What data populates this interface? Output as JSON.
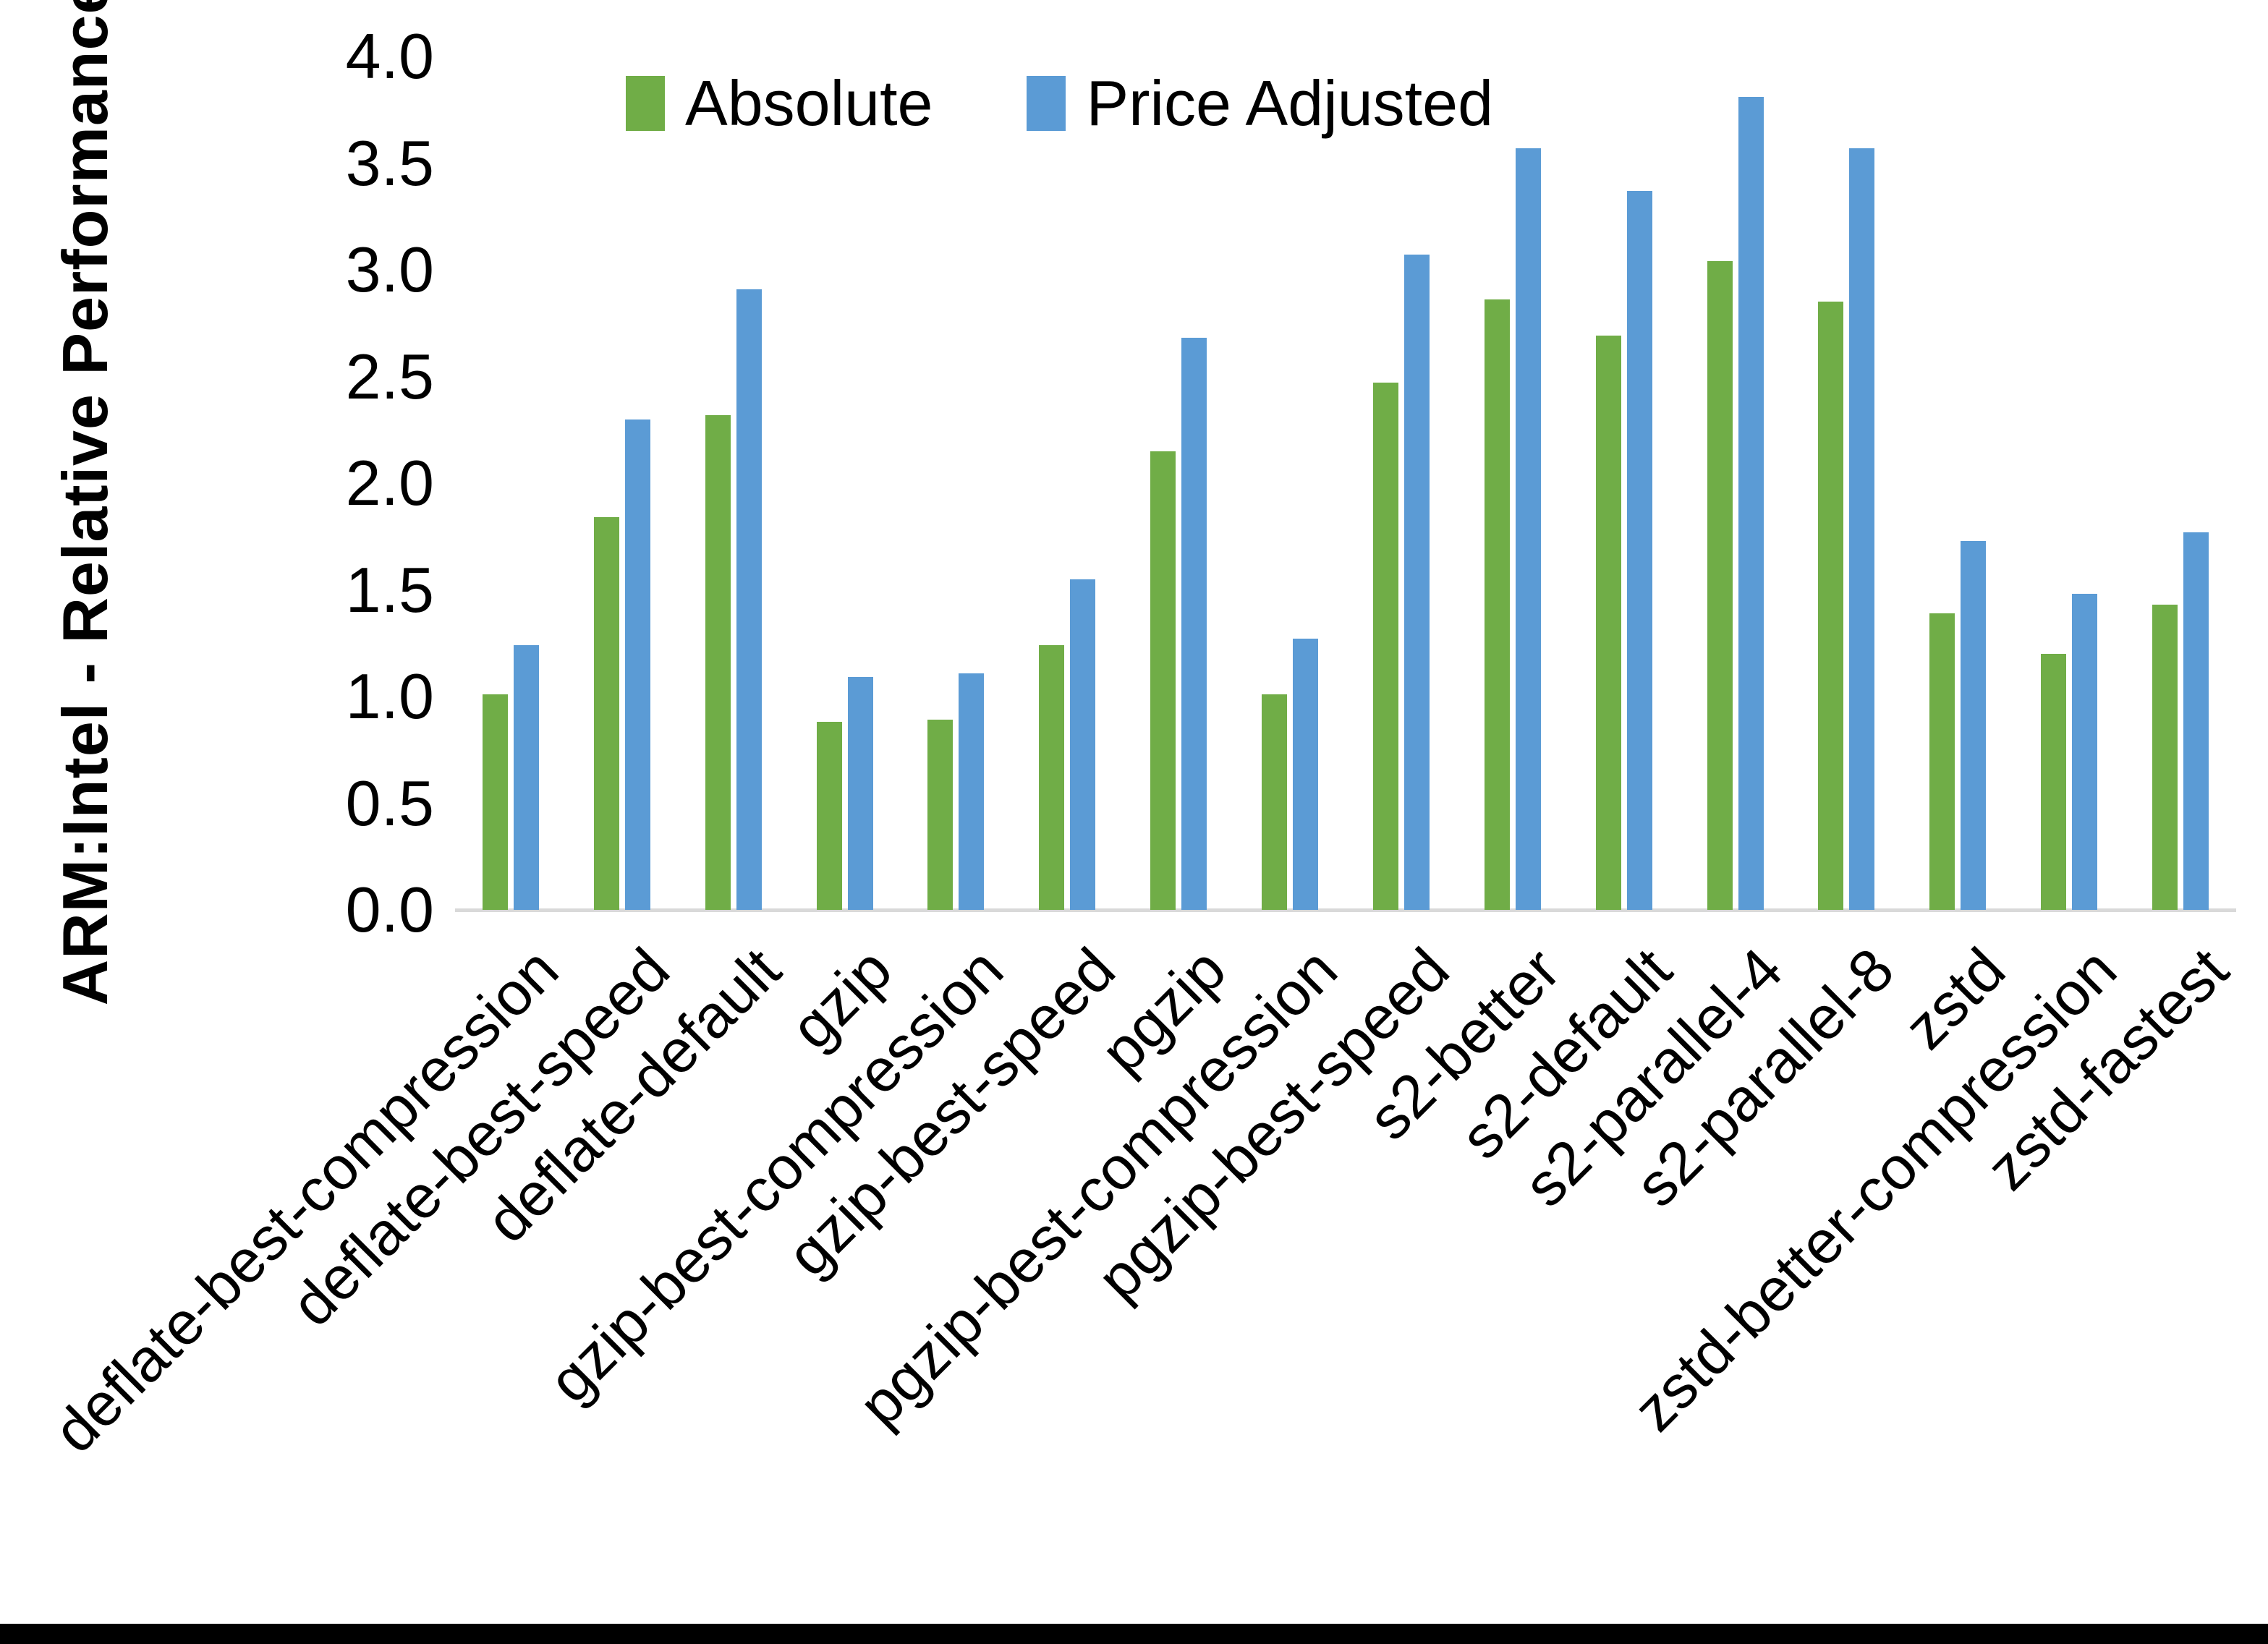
{
  "chart_data": {
    "type": "bar",
    "title": "",
    "xlabel": "",
    "ylabel": "ARM:Intel - Relative Performance",
    "ylim": [
      0.0,
      4.0
    ],
    "ytick_step": 0.5,
    "grid": false,
    "legend_position": "top-center",
    "categories": [
      "deflate-best-compression",
      "deflate-best-speed",
      "deflate-default",
      "gzip",
      "gzip-best-compression",
      "gzip-best-speed",
      "pgzip",
      "pgzip-best-compression",
      "pgzip-best-speed",
      "s2-better",
      "s2-default",
      "s2-parallel-4",
      "s2-parallel-8",
      "zstd",
      "zstd-better-compression",
      "zstd-fastest"
    ],
    "series": [
      {
        "name": "Absolute",
        "color": "#70AD47",
        "values": [
          1.01,
          1.84,
          2.32,
          0.88,
          0.89,
          1.24,
          2.15,
          1.01,
          2.47,
          2.86,
          2.69,
          3.04,
          2.85,
          1.39,
          1.2,
          1.43
        ]
      },
      {
        "name": "Price Adjusted",
        "color": "#5B9BD5",
        "values": [
          1.24,
          2.3,
          2.91,
          1.09,
          1.11,
          1.55,
          2.68,
          1.27,
          3.07,
          3.57,
          3.37,
          3.81,
          3.57,
          1.73,
          1.48,
          1.77
        ]
      }
    ]
  },
  "colors": {
    "background": "#FFFFFF",
    "axis_line": "#D9D9D9",
    "text": "#000000",
    "bottom_bar": "#000000"
  }
}
